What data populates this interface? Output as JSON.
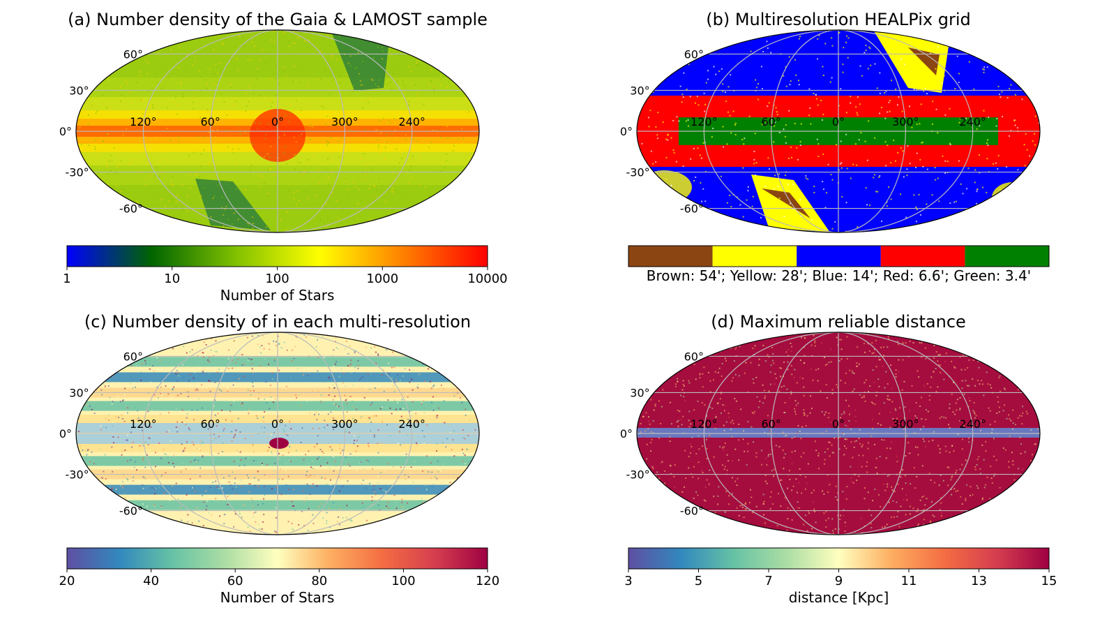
{
  "figure": {
    "panels": [
      {
        "id": "a",
        "title": "(a) Number density of the Gaia & LAMOST sample",
        "map_kind": "density",
        "lon_labels": [
          "120°",
          "60°",
          "0°",
          "300°",
          "240°"
        ],
        "lat_labels": [
          "60°",
          "30°",
          "0°",
          "-30°",
          "-60°"
        ],
        "colorbar": {
          "type": "log-continuous",
          "colors": [
            "#0000ff",
            "#006400",
            "#80c000",
            "#ffff00",
            "#ff8000",
            "#ff0000"
          ],
          "ticks": [
            "1",
            "10",
            "100",
            "1000",
            "10000"
          ],
          "label": "Number of Stars"
        }
      },
      {
        "id": "b",
        "title": "(b) Multiresolution HEALPix grid",
        "map_kind": "grid",
        "lon_labels": [
          "120°",
          "60°",
          "0°",
          "300°",
          "240°"
        ],
        "lat_labels": [
          "60°",
          "30°",
          "0°",
          "-30°",
          "-60°"
        ],
        "colorbar": {
          "type": "categorical",
          "colors": [
            "#8b4513",
            "#ffff00",
            "#0000ff",
            "#ff0000",
            "#008000"
          ],
          "label": "Brown: 54'; Yellow: 28'; Blue: 14'; Red: 6.6'; Green: 3.4'"
        }
      },
      {
        "id": "c",
        "title": "(c) Number density of in each multi-resolution",
        "map_kind": "bands",
        "lon_labels": [
          "120°",
          "60°",
          "0°",
          "300°",
          "240°"
        ],
        "lat_labels": [
          "60°",
          "30°",
          "0°",
          "-30°",
          "-60°"
        ],
        "colorbar": {
          "type": "continuous",
          "colors": [
            "#5e4fa2",
            "#3288bd",
            "#66c2a5",
            "#abdda4",
            "#ffffbf",
            "#fdae61",
            "#f46d43",
            "#d53e4f",
            "#9e0142"
          ],
          "ticks": [
            "20",
            "40",
            "60",
            "80",
            "100",
            "120"
          ],
          "label": "Number of Stars"
        }
      },
      {
        "id": "d",
        "title": "(d) Maximum reliable distance",
        "map_kind": "distance",
        "lon_labels": [
          "120°",
          "60°",
          "0°",
          "300°",
          "240°"
        ],
        "lat_labels": [
          "60°",
          "30°",
          "0°",
          "-30°",
          "-60°"
        ],
        "colorbar": {
          "type": "continuous",
          "colors": [
            "#5e4fa2",
            "#3288bd",
            "#66c2a5",
            "#abdda4",
            "#ffffbf",
            "#fdae61",
            "#f46d43",
            "#d53e4f",
            "#9e0142"
          ],
          "ticks": [
            "3",
            "5",
            "7",
            "9",
            "11",
            "13",
            "15"
          ],
          "label": "distance [Kpc]"
        }
      }
    ]
  },
  "chart_data": [
    {
      "type": "heatmap",
      "projection": "mollweide",
      "title": "(a) Number density of the Gaia & LAMOST sample",
      "longitude_ticks": [
        120,
        60,
        0,
        300,
        240
      ],
      "latitude_ticks": [
        60,
        30,
        0,
        -30,
        -60
      ],
      "colorbar": {
        "scale": "log",
        "range": [
          1,
          10000
        ],
        "ticks": [
          1,
          10,
          100,
          1000,
          10000
        ],
        "label": "Number of Stars"
      }
    },
    {
      "type": "heatmap",
      "projection": "mollweide",
      "title": "(b) Multiresolution HEALPix grid",
      "longitude_ticks": [
        120,
        60,
        0,
        300,
        240
      ],
      "latitude_ticks": [
        60,
        30,
        0,
        -30,
        -60
      ],
      "categories": [
        "Brown: 54'",
        "Yellow: 28'",
        "Blue: 14'",
        "Red: 6.6'",
        "Green: 3.4'"
      ]
    },
    {
      "type": "heatmap",
      "projection": "mollweide",
      "title": "(c) Number density of in each multi-resolution",
      "longitude_ticks": [
        120,
        60,
        0,
        300,
        240
      ],
      "latitude_ticks": [
        60,
        30,
        0,
        -30,
        -60
      ],
      "colorbar": {
        "scale": "linear",
        "range": [
          20,
          120
        ],
        "ticks": [
          20,
          40,
          60,
          80,
          100,
          120
        ],
        "label": "Number of Stars"
      }
    },
    {
      "type": "heatmap",
      "projection": "mollweide",
      "title": "(d) Maximum reliable distance",
      "longitude_ticks": [
        120,
        60,
        0,
        300,
        240
      ],
      "latitude_ticks": [
        60,
        30,
        0,
        -30,
        -60
      ],
      "colorbar": {
        "scale": "linear",
        "range": [
          3,
          15
        ],
        "ticks": [
          3,
          5,
          7,
          9,
          11,
          13,
          15
        ],
        "label": "distance [Kpc]"
      }
    }
  ]
}
